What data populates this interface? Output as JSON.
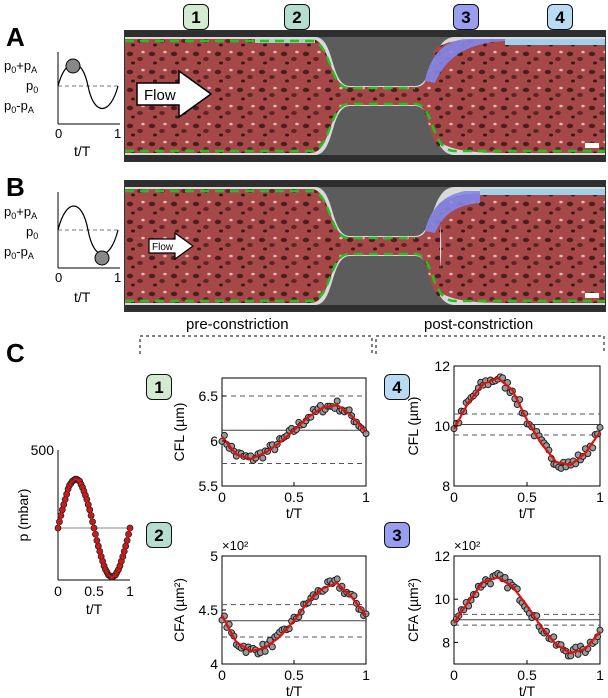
{
  "panels": {
    "A": "A",
    "B": "B",
    "C": "C"
  },
  "badges": [
    {
      "num": "1",
      "color": "#d3ecd1"
    },
    {
      "num": "2",
      "color": "#b5ddd0"
    },
    {
      "num": "3",
      "color": "#9a9ef0"
    },
    {
      "num": "4",
      "color": "#b9dcf4"
    }
  ],
  "inset": {
    "ylabels": [
      "p₀+pₐ",
      "p₀",
      "p₀-pₐ"
    ],
    "ylabel_plus": "p0+pA",
    "ylabel_mid": "p0",
    "ylabel_minus": "p0-pA",
    "xticks": [
      "0",
      "1"
    ],
    "xlabel": "t/T"
  },
  "micro": {
    "flow_label": "Flow"
  },
  "sections": {
    "pre": "pre-constriction",
    "post": "post-constriction"
  },
  "colors": {
    "cells": "#b54a4a",
    "red_fit": "#e01010",
    "green_dash": "#22c022",
    "lumen": "#a64848"
  },
  "chart_data": [
    {
      "type": "line",
      "id": "pressure",
      "ylabel": "p (mbar)",
      "xlabel": "t/T",
      "xticks": [
        "0",
        "0.5",
        "1"
      ],
      "yticks": [
        "500"
      ],
      "xlim": [
        0,
        1
      ],
      "ylim": [
        0,
        500
      ],
      "x": [
        0,
        0.05,
        0.1,
        0.15,
        0.2,
        0.25,
        0.3,
        0.35,
        0.4,
        0.45,
        0.5,
        0.55,
        0.6,
        0.65,
        0.7,
        0.75,
        0.8,
        0.85,
        0.9,
        0.95,
        1.0
      ],
      "y": [
        200,
        260,
        310,
        360,
        380,
        390,
        380,
        350,
        310,
        260,
        200,
        140,
        90,
        45,
        20,
        10,
        20,
        45,
        90,
        140,
        200
      ]
    },
    {
      "type": "scatter",
      "id": "cfl1",
      "badge": "1",
      "ylabel": "CFL (µm)",
      "xlabel": "t/T",
      "xticks": [
        "0",
        "0.5",
        "1"
      ],
      "yticks": [
        "5.5",
        "6",
        "6.5"
      ],
      "xlim": [
        0,
        1
      ],
      "ylim": [
        5.5,
        6.7
      ],
      "hlines": [
        6.5,
        6.12,
        5.75
      ],
      "fit_x": [
        0,
        0.1,
        0.2,
        0.3,
        0.4,
        0.5,
        0.6,
        0.7,
        0.8,
        0.9,
        1.0
      ],
      "fit_y": [
        6.05,
        5.85,
        5.8,
        5.87,
        5.98,
        6.12,
        6.27,
        6.37,
        6.4,
        6.28,
        6.1
      ]
    },
    {
      "type": "scatter",
      "id": "cfl4",
      "badge": "4",
      "ylabel": "CFL (µm)",
      "xlabel": "t/T",
      "xticks": [
        "0",
        "0.5",
        "1"
      ],
      "yticks": [
        "8",
        "10",
        "12"
      ],
      "xlim": [
        0,
        1
      ],
      "ylim": [
        8,
        12
      ],
      "hlines": [
        10.4,
        10.05,
        9.7
      ],
      "fit_x": [
        0,
        0.1,
        0.2,
        0.3,
        0.4,
        0.5,
        0.6,
        0.7,
        0.8,
        0.9,
        1.0
      ],
      "fit_y": [
        9.9,
        10.8,
        11.4,
        11.6,
        11.2,
        10.2,
        9.4,
        8.8,
        8.7,
        9.1,
        9.8
      ]
    },
    {
      "type": "scatter",
      "id": "cfa2",
      "badge": "2",
      "ylabel": "CFA (µm²)",
      "xlabel": "t/T",
      "exponent": "×10²",
      "xticks": [
        "0",
        "0.5",
        "1"
      ],
      "yticks": [
        "4",
        "4.5",
        "5"
      ],
      "xlim": [
        0,
        1
      ],
      "ylim": [
        4,
        5
      ],
      "hlines": [
        4.55,
        4.4,
        4.25
      ],
      "fit_x": [
        0,
        0.1,
        0.2,
        0.3,
        0.4,
        0.5,
        0.6,
        0.7,
        0.8,
        0.9,
        1.0
      ],
      "fit_y": [
        4.45,
        4.2,
        4.12,
        4.15,
        4.25,
        4.4,
        4.58,
        4.7,
        4.75,
        4.62,
        4.45
      ]
    },
    {
      "type": "scatter",
      "id": "cfa3",
      "badge": "3",
      "ylabel": "CFA (µm²)",
      "xlabel": "t/T",
      "exponent": "×10²",
      "xticks": [
        "0",
        "0.5",
        "1"
      ],
      "yticks": [
        "8",
        "10",
        "12"
      ],
      "xlim": [
        0,
        1
      ],
      "ylim": [
        7,
        12
      ],
      "hlines": [
        9.3,
        9.05,
        8.8
      ],
      "fit_x": [
        0,
        0.1,
        0.2,
        0.3,
        0.4,
        0.5,
        0.6,
        0.7,
        0.8,
        0.9,
        1.0
      ],
      "fit_y": [
        8.9,
        9.9,
        10.8,
        11.0,
        10.6,
        9.7,
        8.7,
        7.9,
        7.5,
        7.7,
        8.5
      ]
    }
  ]
}
